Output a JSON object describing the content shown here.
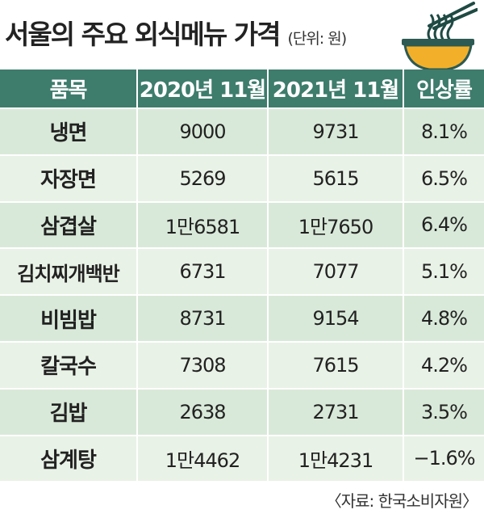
{
  "header": {
    "title": "서울의 주요 외식메뉴 가격",
    "unit": "(단위: 원)"
  },
  "colors": {
    "header_bg": "#3e7c6c",
    "row_odd": "#d9e9d9",
    "row_even": "#e9f2e6",
    "bowl": "#f2b02a",
    "bowl_rim": "#2d5a52"
  },
  "icons": [
    "noodle-bowl-icon"
  ],
  "chart_data": {
    "type": "table",
    "title": "서울의 주요 외식메뉴 가격",
    "columns": [
      "품목",
      "2020년 11월",
      "2021년 11월",
      "인상률"
    ],
    "rows": [
      [
        "냉면",
        "9000",
        "9731",
        "8.1%"
      ],
      [
        "자장면",
        "5269",
        "5615",
        "6.5%"
      ],
      [
        "삼겹살",
        "1만6581",
        "1만7650",
        "6.4%"
      ],
      [
        "김치찌개백반",
        "6731",
        "7077",
        "5.1%"
      ],
      [
        "비빔밥",
        "8731",
        "9154",
        "4.8%"
      ],
      [
        "칼국수",
        "7308",
        "7615",
        "4.2%"
      ],
      [
        "김밥",
        "2638",
        "2731",
        "3.5%"
      ],
      [
        "삼계탕",
        "1만4462",
        "1만4231",
        "−1.6%"
      ]
    ]
  },
  "footer": {
    "source": "〈자료: 한국소비자원〉"
  }
}
